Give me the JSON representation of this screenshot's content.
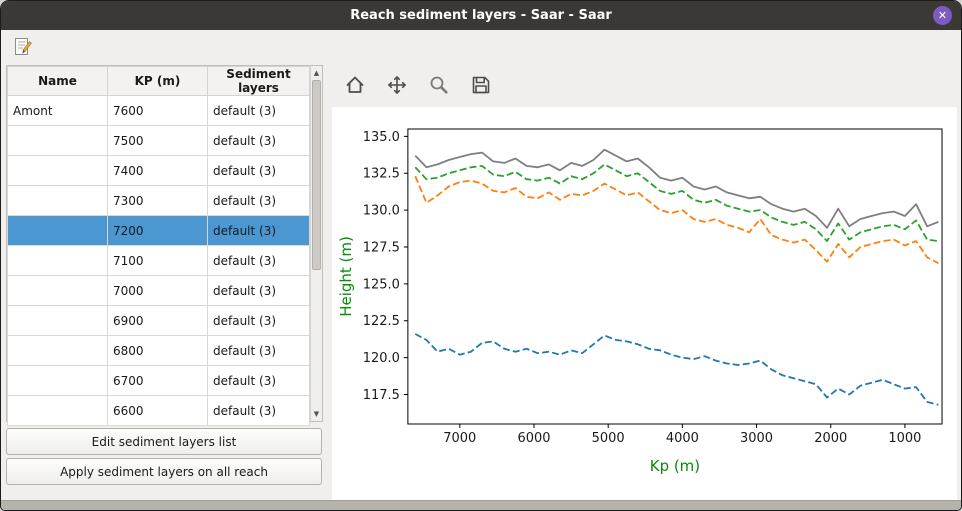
{
  "window": {
    "title": "Reach sediment layers - Saar - Saar",
    "close_icon": "✕"
  },
  "colors": {
    "titlebar_bg": "#3b3835",
    "close_button": "#7c5cbf",
    "selection": "#4a97d2",
    "window_bg": "#f0efed"
  },
  "toolbar": {
    "edit_icon": "edit-sediment-layers-icon"
  },
  "table": {
    "columns": [
      "Name",
      "KP (m)",
      "Sediment layers"
    ],
    "rows": [
      {
        "name": "Amont",
        "kp": "7600",
        "layers": "default (3)",
        "selected": false
      },
      {
        "name": "",
        "kp": "7500",
        "layers": "default (3)",
        "selected": false
      },
      {
        "name": "",
        "kp": "7400",
        "layers": "default (3)",
        "selected": false
      },
      {
        "name": "",
        "kp": "7300",
        "layers": "default (3)",
        "selected": false
      },
      {
        "name": "",
        "kp": "7200",
        "layers": "default (3)",
        "selected": true
      },
      {
        "name": "",
        "kp": "7100",
        "layers": "default (3)",
        "selected": false
      },
      {
        "name": "",
        "kp": "7000",
        "layers": "default (3)",
        "selected": false
      },
      {
        "name": "",
        "kp": "6900",
        "layers": "default (3)",
        "selected": false
      },
      {
        "name": "",
        "kp": "6800",
        "layers": "default (3)",
        "selected": false
      },
      {
        "name": "",
        "kp": "6700",
        "layers": "default (3)",
        "selected": false
      },
      {
        "name": "",
        "kp": "6600",
        "layers": "default (3)",
        "selected": false
      }
    ]
  },
  "buttons": {
    "edit_list": "Edit sediment layers list",
    "apply_all": "Apply sediment layers on all reach"
  },
  "plot_toolbar": {
    "icons": [
      "home-icon",
      "pan-icon",
      "zoom-icon",
      "save-icon"
    ]
  },
  "chart_data": {
    "type": "line",
    "title": "",
    "xlabel": "Kp (m)",
    "ylabel": "Height (m)",
    "axis_label_color": "#0a8a0a",
    "xlim": [
      7700,
      500
    ],
    "ylim": [
      115.5,
      135.5
    ],
    "x_ticks": [
      7000,
      6000,
      5000,
      4000,
      3000,
      2000,
      1000
    ],
    "y_ticks": [
      117.5,
      120.0,
      122.5,
      125.0,
      127.5,
      130.0,
      132.5,
      135.0
    ],
    "grid": false,
    "legend": "none",
    "x": [
      7600,
      7450,
      7300,
      7150,
      7000,
      6850,
      6700,
      6550,
      6400,
      6250,
      6100,
      5950,
      5800,
      5650,
      5500,
      5350,
      5200,
      5050,
      4900,
      4750,
      4600,
      4450,
      4300,
      4150,
      4000,
      3850,
      3700,
      3550,
      3400,
      3250,
      3100,
      2950,
      2800,
      2650,
      2500,
      2350,
      2200,
      2050,
      1900,
      1750,
      1600,
      1450,
      1300,
      1150,
      1000,
      850,
      700,
      550
    ],
    "series": [
      {
        "name": "top-gray-solid",
        "color": "#7f7f7f",
        "style": "solid",
        "values": [
          133.7,
          132.9,
          133.1,
          133.4,
          133.6,
          133.8,
          133.9,
          133.3,
          133.2,
          133.5,
          133.0,
          132.9,
          133.1,
          132.7,
          133.2,
          133.0,
          133.4,
          134.1,
          133.7,
          133.3,
          133.5,
          132.9,
          132.2,
          132.0,
          132.2,
          131.6,
          131.4,
          131.6,
          131.2,
          131.0,
          130.8,
          130.9,
          130.4,
          130.1,
          129.9,
          130.1,
          129.6,
          128.8,
          130.1,
          128.9,
          129.4,
          129.6,
          129.8,
          129.9,
          129.6,
          130.4,
          128.9,
          129.2
        ]
      },
      {
        "name": "upper-green-dashed",
        "color": "#2ca02c",
        "style": "dashed",
        "values": [
          132.9,
          132.1,
          132.2,
          132.5,
          132.7,
          132.9,
          133.0,
          132.4,
          132.3,
          132.6,
          132.1,
          132.0,
          132.2,
          131.8,
          132.3,
          132.1,
          132.5,
          133.1,
          132.7,
          132.3,
          132.5,
          131.9,
          131.3,
          131.1,
          131.3,
          130.7,
          130.5,
          130.7,
          130.3,
          130.1,
          129.9,
          130.0,
          129.5,
          129.2,
          129.0,
          129.2,
          128.7,
          127.9,
          129.1,
          128.0,
          128.5,
          128.7,
          128.9,
          129.0,
          128.7,
          129.3,
          128.0,
          127.9
        ]
      },
      {
        "name": "middle-orange-dashed",
        "color": "#ff7f0e",
        "style": "dashed",
        "values": [
          132.3,
          130.5,
          131.0,
          131.6,
          131.9,
          132.0,
          131.8,
          131.3,
          131.2,
          131.5,
          130.9,
          130.8,
          131.2,
          130.7,
          131.1,
          131.0,
          131.3,
          131.8,
          131.4,
          131.0,
          131.2,
          130.6,
          130.0,
          129.8,
          130.0,
          129.4,
          129.2,
          129.4,
          129.0,
          128.8,
          128.5,
          129.4,
          128.3,
          128.0,
          127.8,
          128.0,
          127.3,
          126.5,
          127.7,
          126.8,
          127.5,
          127.7,
          127.9,
          128.0,
          127.6,
          127.9,
          126.8,
          126.4
        ]
      },
      {
        "name": "lower-blue-dashed",
        "color": "#1f77b4",
        "style": "dashed",
        "values": [
          121.6,
          121.2,
          120.4,
          120.6,
          120.2,
          120.4,
          121.0,
          121.1,
          120.6,
          120.4,
          120.6,
          120.3,
          120.4,
          120.2,
          120.5,
          120.3,
          120.9,
          121.5,
          121.2,
          121.1,
          120.9,
          120.6,
          120.5,
          120.2,
          120.0,
          119.9,
          120.1,
          119.8,
          119.6,
          119.5,
          119.6,
          119.8,
          119.2,
          118.8,
          118.6,
          118.4,
          118.2,
          117.3,
          117.9,
          117.5,
          118.1,
          118.3,
          118.5,
          118.2,
          117.9,
          118.0,
          117.0,
          116.8
        ]
      }
    ]
  }
}
